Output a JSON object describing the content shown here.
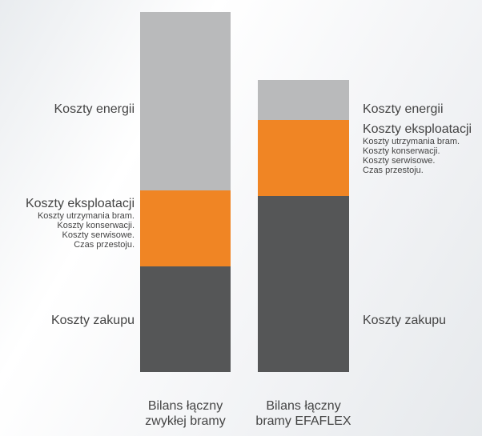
{
  "chart_data": {
    "type": "stacked-bar",
    "categories": [
      "Bilans łączny\nzwykłej bramy",
      "Bilans łączny\nbramy EFAFLEX"
    ],
    "ylim": [
      0,
      450
    ],
    "series": [
      {
        "name": "Koszty zakupu",
        "color": "#555657",
        "values": [
          132,
          220
        ]
      },
      {
        "name": "Koszty eksploatacji",
        "color": "#f08524",
        "values": [
          95,
          95
        ],
        "details": [
          "Koszty utrzymania bram.",
          "Koszty konserwacji.",
          "Koszty serwisowe.",
          "Czas przestoju."
        ]
      },
      {
        "name": "Koszty energii",
        "color": "#b9babb",
        "values": [
          223,
          50
        ]
      }
    ]
  }
}
